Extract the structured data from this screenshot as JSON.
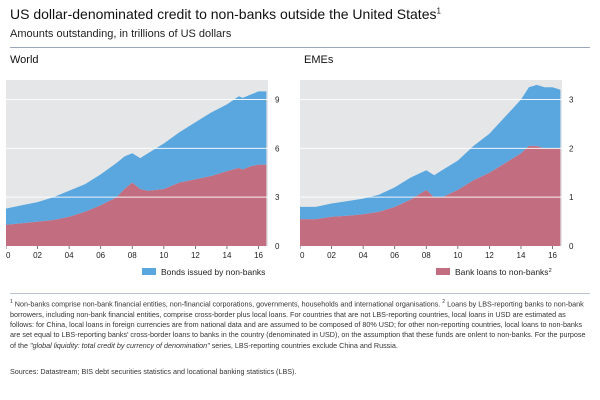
{
  "title": "US dollar-denominated credit to non-banks outside the United States",
  "title_sup": "1",
  "subtitle": "Amounts outstanding, in trillions of US dollars",
  "colors": {
    "bonds": "#5aa7df",
    "loans": "#c26e80",
    "panel_bg": "#e4e6e8",
    "grid": "#ffffff"
  },
  "chart_data": [
    {
      "type": "area",
      "title": "World",
      "xlabel": "",
      "ylabel": "",
      "stacked": true,
      "x_tick_labels": [
        "00",
        "02",
        "04",
        "06",
        "08",
        "10",
        "12",
        "14",
        "16"
      ],
      "x_tick_values": [
        2000,
        2002,
        2004,
        2006,
        2008,
        2010,
        2012,
        2014,
        2016
      ],
      "y_ticks": [
        0,
        3,
        6,
        9
      ],
      "xlim": [
        2000,
        2016.6
      ],
      "ylim": [
        0,
        10.2
      ],
      "axis_side": "right",
      "grid": true,
      "legend": {
        "placement": "bottom",
        "entries": [
          "Bonds issued by non-banks"
        ]
      },
      "x": [
        2000,
        2001,
        2002,
        2003,
        2004,
        2005,
        2006,
        2007,
        2007.5,
        2008,
        2008.5,
        2009,
        2010,
        2011,
        2012,
        2013,
        2014,
        2014.75,
        2015,
        2015.5,
        2016,
        2016.5
      ],
      "series": [
        {
          "name": "Bank loans to non-banks",
          "values": [
            1.3,
            1.4,
            1.5,
            1.6,
            1.8,
            2.1,
            2.5,
            3.0,
            3.5,
            3.9,
            3.5,
            3.4,
            3.5,
            3.9,
            4.1,
            4.3,
            4.6,
            4.8,
            4.7,
            4.9,
            5.0,
            5.0
          ]
        },
        {
          "name": "Bonds issued by non-banks",
          "values": [
            1.0,
            1.1,
            1.2,
            1.4,
            1.6,
            1.7,
            1.9,
            2.1,
            2.0,
            1.8,
            1.9,
            2.3,
            2.8,
            3.1,
            3.5,
            3.9,
            4.1,
            4.4,
            4.4,
            4.4,
            4.5,
            4.5
          ]
        }
      ]
    },
    {
      "type": "area",
      "title": "EMEs",
      "xlabel": "",
      "ylabel": "",
      "stacked": true,
      "x_tick_labels": [
        "00",
        "02",
        "04",
        "06",
        "08",
        "10",
        "12",
        "14",
        "16"
      ],
      "x_tick_values": [
        2000,
        2002,
        2004,
        2006,
        2008,
        2010,
        2012,
        2014,
        2016
      ],
      "y_ticks": [
        0,
        1,
        2,
        3
      ],
      "xlim": [
        2000,
        2016.6
      ],
      "ylim": [
        0,
        3.4
      ],
      "axis_side": "right",
      "grid": true,
      "legend": {
        "placement": "bottom",
        "entries": [
          "Bank loans to non-banks"
        ],
        "entry_sups": [
          "2"
        ]
      },
      "x": [
        2000,
        2001,
        2002,
        2003,
        2004,
        2005,
        2006,
        2007,
        2008,
        2008.5,
        2009,
        2010,
        2011,
        2012,
        2013,
        2014,
        2014.5,
        2015,
        2015.5,
        2016,
        2016.5
      ],
      "series": [
        {
          "name": "Bank loans to non-banks",
          "values": [
            0.55,
            0.55,
            0.6,
            0.62,
            0.65,
            0.7,
            0.8,
            0.95,
            1.15,
            1.0,
            1.0,
            1.15,
            1.35,
            1.5,
            1.7,
            1.9,
            2.05,
            2.05,
            2.0,
            2.0,
            2.0
          ]
        },
        {
          "name": "Bonds issued by non-banks",
          "values": [
            0.25,
            0.25,
            0.27,
            0.3,
            0.32,
            0.35,
            0.4,
            0.45,
            0.4,
            0.45,
            0.55,
            0.6,
            0.7,
            0.8,
            0.95,
            1.1,
            1.2,
            1.25,
            1.25,
            1.25,
            1.2
          ]
        }
      ]
    }
  ],
  "footnote": {
    "sup1": "1",
    "part1": "Non-banks comprise non-bank financial entities, non-financial corporations, governments, households and international organisations.",
    "sup2": "2",
    "part2": "Loans by LBS-reporting banks to non-bank borrowers, including non-bank financial entities, comprise cross-border plus local loans. For countries that are not LBS-reporting countries, local loans in USD are estimated as follows: for China, local loans in foreign currencies are from national data and are assumed to be composed of 80% USD; for other non-reporting countries, local loans to non-banks are set equal to LBS-reporting banks' cross-border loans to banks in the country (denominated in USD), on the assumption that these funds are onlent to non-banks. For the purpose of the",
    "italic": "\"global liquidity: total credit by currency of denomination\"",
    "part3": "series, LBS-reporting countries exclude China and Russia."
  },
  "sources": "Sources: Datastream; BIS debt securities statistics and locational banking statistics (LBS)."
}
